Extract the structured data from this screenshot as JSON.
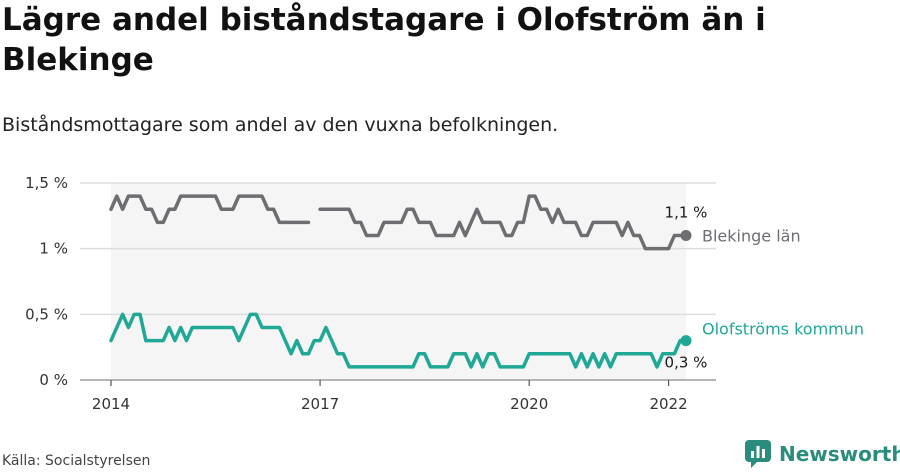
{
  "title": "Lägre andel biståndstagare i Olofström än i Blekinge",
  "subtitle": "Biståndsmottagare som andel av den vuxna befolkningen.",
  "source": "Källa: Socialstyrelsen",
  "brand": "Newsworthy",
  "colors": {
    "blekinge": "#6e6e72",
    "olofstrom": "#1fa896",
    "band": "#f5f5f5",
    "grid": "#dddddd",
    "brand": "#2a8c7c"
  },
  "chart_data": {
    "type": "line",
    "x_start": "2014-01",
    "x_step": "month",
    "ylim": [
      0,
      1.5
    ],
    "yticks": [
      {
        "value": 0,
        "label": "0 %"
      },
      {
        "value": 0.5,
        "label": "0,5 %"
      },
      {
        "value": 1,
        "label": "1 %"
      },
      {
        "value": 1.5,
        "label": "1,5 %"
      }
    ],
    "xticks": [
      {
        "label": "2014",
        "month_index": 0
      },
      {
        "label": "2017",
        "month_index": 36
      },
      {
        "label": "2020",
        "month_index": 72
      },
      {
        "label": "2022",
        "month_index": 96
      }
    ],
    "series": [
      {
        "name": "Blekinge län",
        "end_label": "1,1 %",
        "values": [
          1.3,
          1.4,
          1.3,
          1.4,
          1.4,
          1.4,
          1.3,
          1.3,
          1.2,
          1.2,
          1.3,
          1.3,
          1.4,
          1.4,
          1.4,
          1.4,
          1.4,
          1.4,
          1.4,
          1.3,
          1.3,
          1.3,
          1.4,
          1.4,
          1.4,
          1.4,
          1.4,
          1.3,
          1.3,
          1.2,
          1.2,
          1.2,
          1.2,
          1.2,
          1.2,
          null,
          1.3,
          1.3,
          1.3,
          1.3,
          1.3,
          1.3,
          1.2,
          1.2,
          1.1,
          1.1,
          1.1,
          1.2,
          1.2,
          1.2,
          1.2,
          1.3,
          1.3,
          1.2,
          1.2,
          1.2,
          1.1,
          1.1,
          1.1,
          1.1,
          1.2,
          1.1,
          1.2,
          1.3,
          1.2,
          1.2,
          1.2,
          1.2,
          1.1,
          1.1,
          1.2,
          1.2,
          1.4,
          1.4,
          1.3,
          1.3,
          1.2,
          1.3,
          1.2,
          1.2,
          1.2,
          1.1,
          1.1,
          1.2,
          1.2,
          1.2,
          1.2,
          1.2,
          1.1,
          1.2,
          1.1,
          1.1,
          1.0,
          1.0,
          1.0,
          1.0,
          1.0,
          1.1,
          1.1,
          1.1
        ]
      },
      {
        "name": "Olofströms kommun",
        "end_label": "0,3 %",
        "values": [
          0.3,
          0.4,
          0.5,
          0.4,
          0.5,
          0.5,
          0.3,
          0.3,
          0.3,
          0.3,
          0.4,
          0.3,
          0.4,
          0.3,
          0.4,
          0.4,
          0.4,
          0.4,
          0.4,
          0.4,
          0.4,
          0.4,
          0.3,
          0.4,
          0.5,
          0.5,
          0.4,
          0.4,
          0.4,
          0.4,
          0.3,
          0.2,
          0.3,
          0.2,
          0.2,
          0.3,
          0.3,
          0.4,
          0.3,
          0.2,
          0.2,
          0.1,
          0.1,
          0.1,
          0.1,
          0.1,
          0.1,
          0.1,
          0.1,
          0.1,
          0.1,
          0.1,
          0.1,
          0.2,
          0.2,
          0.1,
          0.1,
          0.1,
          0.1,
          0.2,
          0.2,
          0.2,
          0.1,
          0.2,
          0.1,
          0.2,
          0.2,
          0.1,
          0.1,
          0.1,
          0.1,
          0.1,
          0.2,
          0.2,
          0.2,
          0.2,
          0.2,
          0.2,
          0.2,
          0.2,
          0.1,
          0.2,
          0.1,
          0.2,
          0.1,
          0.2,
          0.1,
          0.2,
          0.2,
          0.2,
          0.2,
          0.2,
          0.2,
          0.2,
          0.1,
          0.2,
          0.2,
          0.2,
          0.3,
          0.3
        ]
      }
    ]
  }
}
